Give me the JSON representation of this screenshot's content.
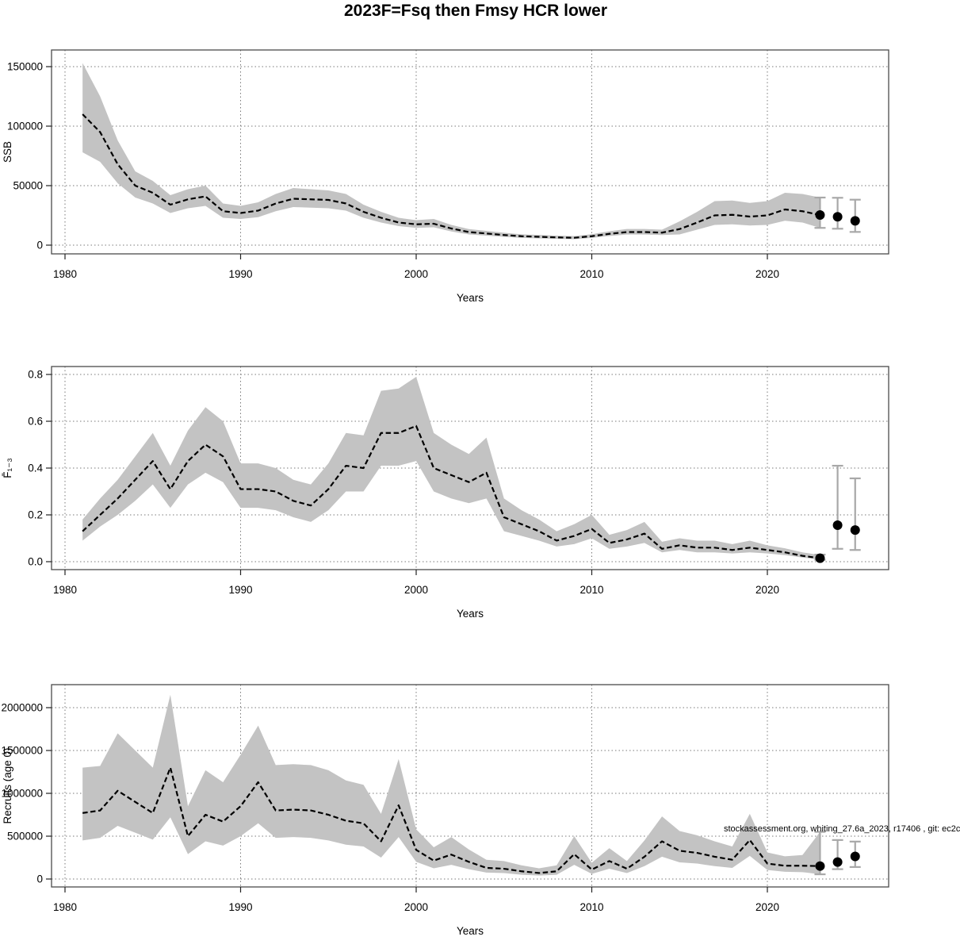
{
  "title": "2023F=Fsq then Fmsy HCR lower",
  "annotation": "stockassessment.org, whiting_27.6a_2023, r17406 , git: ec2c",
  "xlabel": "Years",
  "x_ticks": [
    1980,
    1990,
    2000,
    2010,
    2020
  ],
  "years": [
    1981,
    1982,
    1983,
    1984,
    1985,
    1986,
    1987,
    1988,
    1989,
    1990,
    1991,
    1992,
    1993,
    1994,
    1995,
    1996,
    1997,
    1998,
    1999,
    2000,
    2001,
    2002,
    2003,
    2004,
    2005,
    2006,
    2007,
    2008,
    2009,
    2010,
    2011,
    2012,
    2013,
    2014,
    2015,
    2016,
    2017,
    2018,
    2019,
    2020,
    2021,
    2022,
    2023
  ],
  "style": {
    "band_color": "#c3c3c3",
    "line_color": "#000000",
    "grid_color": "#7a7a7a",
    "errorbar_color": "#a8a8a8",
    "point_color": "#000000"
  },
  "chart_data": [
    {
      "type": "area",
      "name": "ssb",
      "ylabel": "SSB",
      "ylim": [
        0,
        157000
      ],
      "grid": true,
      "ytick_values": [
        0,
        50000,
        100000,
        150000
      ],
      "ytick_labels": [
        "0",
        "50000",
        "100000",
        "150000"
      ],
      "median": [
        110000,
        95000,
        68000,
        50000,
        44000,
        34000,
        38500,
        41000,
        28500,
        27000,
        29000,
        35000,
        39000,
        38500,
        38000,
        35000,
        28000,
        23000,
        19000,
        17500,
        18000,
        14000,
        11000,
        9800,
        8500,
        7500,
        7000,
        6500,
        6200,
        7500,
        9500,
        11000,
        11000,
        10500,
        13500,
        19000,
        25000,
        25500,
        24000,
        25000,
        30000,
        28500,
        25300
      ],
      "lo": [
        78000,
        70000,
        52000,
        40000,
        35000,
        27000,
        31000,
        33000,
        23000,
        22000,
        23500,
        28500,
        32000,
        31500,
        31000,
        29000,
        23000,
        19000,
        16000,
        14500,
        15000,
        11500,
        9000,
        8000,
        7000,
        6100,
        5700,
        5300,
        5000,
        6100,
        7700,
        8900,
        8900,
        8500,
        9000,
        13000,
        17000,
        17500,
        16500,
        17000,
        20500,
        19000,
        14500
      ],
      "hi": [
        153000,
        125000,
        88000,
        62000,
        54000,
        42000,
        47000,
        50000,
        35000,
        33000,
        36000,
        43000,
        48000,
        47000,
        46000,
        43000,
        34000,
        28000,
        23000,
        21000,
        22000,
        17000,
        13500,
        12000,
        10400,
        9100,
        8600,
        8000,
        7600,
        9200,
        11700,
        13600,
        13600,
        13000,
        20000,
        28000,
        37000,
        37500,
        35500,
        37000,
        44000,
        43000,
        40000
      ],
      "forecast": {
        "years": [
          2023,
          2024,
          2025
        ],
        "median": [
          25300,
          23800,
          20400
        ],
        "lo": [
          14500,
          13800,
          11100
        ],
        "hi": [
          40000,
          39800,
          38200
        ]
      }
    },
    {
      "type": "area",
      "name": "fbar",
      "ylabel": "F̄₁₋₃",
      "ylim": [
        0,
        0.83
      ],
      "grid": true,
      "ytick_values": [
        0,
        0.2,
        0.4,
        0.6,
        0.8
      ],
      "ytick_labels": [
        "0.0",
        "0.2",
        "0.4",
        "0.6",
        "0.8"
      ],
      "median": [
        0.13,
        0.2,
        0.27,
        0.35,
        0.43,
        0.31,
        0.43,
        0.5,
        0.45,
        0.31,
        0.31,
        0.3,
        0.26,
        0.24,
        0.31,
        0.41,
        0.4,
        0.55,
        0.55,
        0.58,
        0.4,
        0.37,
        0.34,
        0.38,
        0.19,
        0.16,
        0.13,
        0.09,
        0.11,
        0.14,
        0.08,
        0.095,
        0.12,
        0.055,
        0.07,
        0.06,
        0.06,
        0.05,
        0.06,
        0.05,
        0.04,
        0.025,
        0.015
      ],
      "lo": [
        0.09,
        0.15,
        0.2,
        0.26,
        0.33,
        0.23,
        0.33,
        0.38,
        0.34,
        0.23,
        0.23,
        0.22,
        0.19,
        0.17,
        0.22,
        0.3,
        0.3,
        0.41,
        0.41,
        0.43,
        0.3,
        0.27,
        0.25,
        0.27,
        0.13,
        0.11,
        0.09,
        0.065,
        0.075,
        0.1,
        0.055,
        0.065,
        0.08,
        0.04,
        0.05,
        0.04,
        0.04,
        0.035,
        0.04,
        0.035,
        0.028,
        0.018,
        0.008
      ],
      "hi": [
        0.18,
        0.27,
        0.35,
        0.45,
        0.55,
        0.41,
        0.56,
        0.66,
        0.6,
        0.42,
        0.42,
        0.4,
        0.35,
        0.33,
        0.42,
        0.55,
        0.54,
        0.73,
        0.74,
        0.79,
        0.55,
        0.5,
        0.46,
        0.53,
        0.27,
        0.22,
        0.18,
        0.13,
        0.16,
        0.2,
        0.115,
        0.135,
        0.17,
        0.085,
        0.1,
        0.09,
        0.09,
        0.075,
        0.09,
        0.07,
        0.057,
        0.04,
        0.028
      ],
      "forecast": {
        "years": [
          2023,
          2024,
          2025
        ],
        "median": [
          0.015,
          0.156,
          0.135
        ],
        "lo": [
          0.008,
          0.055,
          0.05
        ],
        "hi": [
          0.03,
          0.41,
          0.356
        ]
      }
    },
    {
      "type": "area",
      "name": "recruits",
      "ylabel": "Recruits (age 0)",
      "ylim": [
        0,
        2270000
      ],
      "grid": true,
      "ytick_values": [
        0,
        500000,
        1000000,
        1500000,
        2000000
      ],
      "ytick_labels": [
        "0",
        "500000",
        "1000000",
        "1500000",
        "2000000"
      ],
      "median": [
        770000,
        800000,
        1030000,
        900000,
        770000,
        1300000,
        500000,
        750000,
        670000,
        850000,
        1130000,
        800000,
        810000,
        800000,
        750000,
        680000,
        650000,
        440000,
        860000,
        340000,
        215000,
        285000,
        200000,
        130000,
        120000,
        90000,
        70000,
        90000,
        290000,
        110000,
        210000,
        120000,
        260000,
        440000,
        330000,
        305000,
        260000,
        225000,
        455000,
        180000,
        155000,
        155000,
        151000
      ],
      "lo": [
        450000,
        480000,
        620000,
        540000,
        460000,
        720000,
        290000,
        440000,
        390000,
        500000,
        650000,
        480000,
        490000,
        480000,
        450000,
        400000,
        380000,
        250000,
        490000,
        200000,
        125000,
        165000,
        115000,
        75000,
        70000,
        50000,
        40000,
        50000,
        165000,
        60000,
        120000,
        70000,
        150000,
        260000,
        195000,
        180000,
        150000,
        130000,
        270000,
        105000,
        85000,
        80000,
        55000
      ],
      "hi": [
        1300000,
        1320000,
        1700000,
        1500000,
        1300000,
        2150000,
        850000,
        1270000,
        1130000,
        1450000,
        1790000,
        1330000,
        1340000,
        1330000,
        1270000,
        1150000,
        1100000,
        760000,
        1400000,
        580000,
        370000,
        490000,
        345000,
        225000,
        210000,
        160000,
        125000,
        160000,
        500000,
        190000,
        360000,
        210000,
        450000,
        730000,
        560000,
        510000,
        440000,
        380000,
        760000,
        310000,
        265000,
        280000,
        550000
      ],
      "forecast": {
        "years": [
          2023,
          2024,
          2025
        ],
        "median": [
          151000,
          198000,
          264000
        ],
        "lo": [
          55000,
          115000,
          140000
        ],
        "hi": [
          550000,
          455000,
          437000
        ]
      }
    }
  ]
}
